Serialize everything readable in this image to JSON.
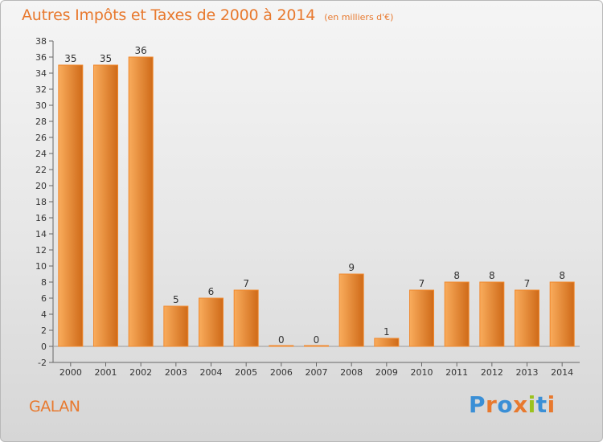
{
  "place_name": "GALAN",
  "logo": {
    "text": "Proxiti",
    "letter_colors": [
      "#3a8fd6",
      "#e8792e",
      "#3a8fd6",
      "#e8792e",
      "#9bc21d",
      "#3a8fd6",
      "#e8792e"
    ]
  },
  "chart_data": {
    "type": "bar",
    "title": "Autres Impôts et Taxes de 2000 à 2014",
    "subtitle": "(en milliers d'€)",
    "xlabel": "",
    "ylabel": "",
    "categories": [
      "2000",
      "2001",
      "2002",
      "2003",
      "2004",
      "2005",
      "2006",
      "2007",
      "2008",
      "2009",
      "2010",
      "2011",
      "2012",
      "2013",
      "2014"
    ],
    "values": [
      35,
      35,
      36,
      5,
      6,
      7,
      0,
      0,
      9,
      1,
      7,
      8,
      8,
      7,
      8
    ],
    "ylim": [
      -2,
      38
    ],
    "yticks": [
      -2,
      0,
      2,
      4,
      6,
      8,
      10,
      12,
      14,
      16,
      18,
      20,
      22,
      24,
      26,
      28,
      30,
      32,
      34,
      36,
      38
    ],
    "grid": false,
    "legend": "none",
    "bar_color": "#f0892e",
    "bar_gradient_light": "#f9ac5c",
    "bar_gradient_dark": "#cf6a18"
  }
}
